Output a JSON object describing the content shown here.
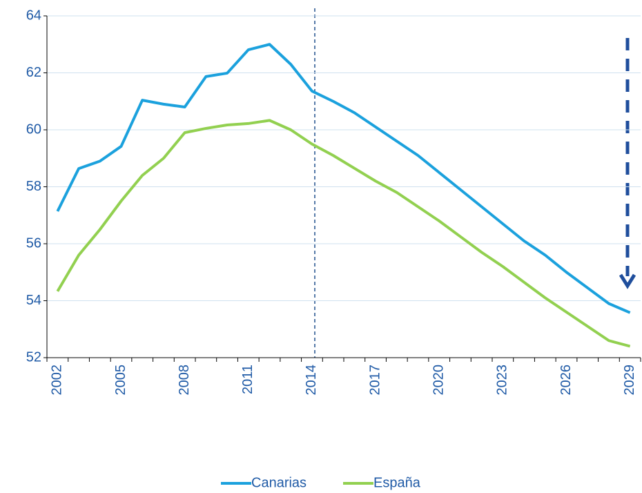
{
  "chart_data": {
    "type": "line",
    "categories": [
      "2002",
      null,
      null,
      "2005",
      null,
      null,
      "2008",
      null,
      null,
      "2011",
      null,
      null,
      "2014",
      null,
      null,
      "2017",
      null,
      null,
      "2020",
      null,
      null,
      "2023",
      null,
      null,
      "2026",
      null,
      null,
      "2029"
    ],
    "series": [
      {
        "name": "Canarias",
        "color": "#1ba1dd",
        "values": [
          57.14,
          58.64,
          58.9,
          59.42,
          61.04,
          60.9,
          60.8,
          61.87,
          61.99,
          62.81,
          63.0,
          62.3,
          61.36,
          61.0,
          60.6,
          60.1,
          59.6,
          59.1,
          58.5,
          57.9,
          57.3,
          56.7,
          56.1,
          55.6,
          55.0,
          54.45,
          53.9,
          53.58
        ]
      },
      {
        "name": "España",
        "color": "#92d050",
        "values": [
          54.33,
          55.6,
          56.5,
          57.5,
          58.4,
          59.0,
          59.9,
          60.05,
          60.17,
          60.22,
          60.33,
          60.0,
          59.5,
          59.1,
          58.65,
          58.2,
          57.8,
          57.3,
          56.8,
          56.25,
          55.7,
          55.2,
          54.65,
          54.1,
          53.6,
          53.1,
          52.6,
          52.4
        ]
      }
    ],
    "ylim": [
      52,
      64
    ],
    "yticks": [
      52,
      54,
      56,
      58,
      60,
      62,
      64
    ],
    "grid": true,
    "legend": "bottom"
  }
}
